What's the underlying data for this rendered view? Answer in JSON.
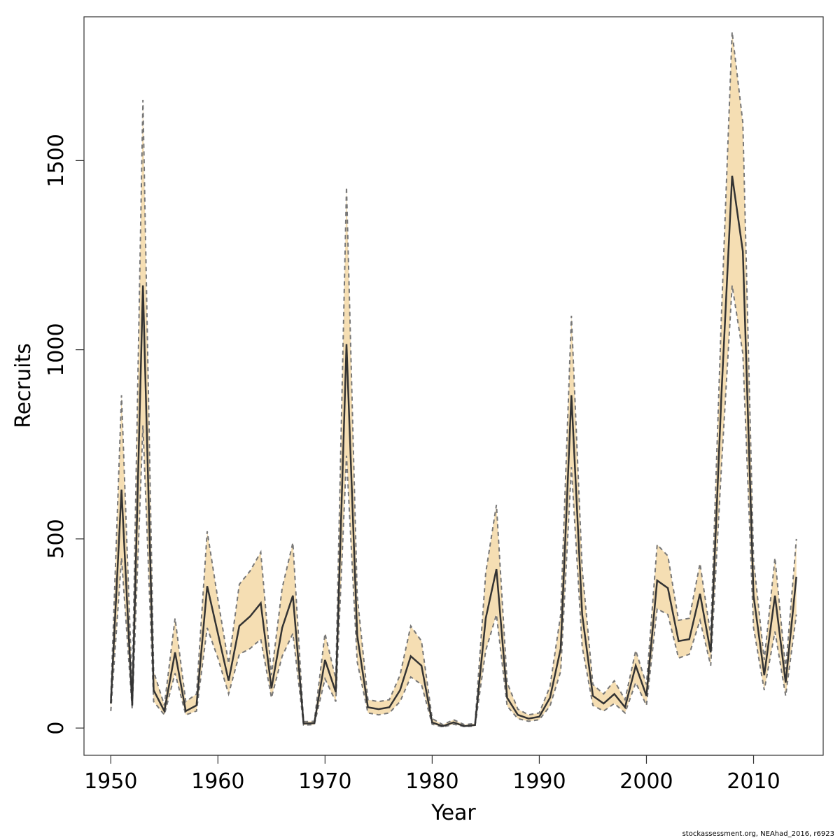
{
  "chart_data": {
    "type": "line",
    "xlabel": "Year",
    "ylabel": "Recruits",
    "xlim": [
      1947.5,
      2016.5
    ],
    "ylim": [
      -72,
      1880
    ],
    "x_ticks": [
      1950,
      1960,
      1970,
      1980,
      1990,
      2000,
      2010
    ],
    "y_ticks": [
      0,
      500,
      1000,
      1500
    ],
    "grid": false,
    "legend": "none",
    "colors": {
      "band": "#f5deb3",
      "line": "#333333",
      "bounds": "#777777",
      "frame": "#333333"
    },
    "x": [
      1950,
      1951,
      1952,
      1953,
      1954,
      1955,
      1956,
      1957,
      1958,
      1959,
      1960,
      1961,
      1962,
      1963,
      1964,
      1965,
      1966,
      1967,
      1968,
      1969,
      1970,
      1971,
      1972,
      1973,
      1974,
      1975,
      1976,
      1977,
      1978,
      1979,
      1980,
      1981,
      1982,
      1983,
      1984,
      1985,
      1986,
      1987,
      1988,
      1989,
      1990,
      1991,
      1992,
      1993,
      1994,
      1995,
      1996,
      1997,
      1998,
      1999,
      2000,
      2001,
      2002,
      2003,
      2004,
      2005,
      2006,
      2007,
      2008,
      2009,
      2010,
      2011,
      2012,
      2013,
      2014
    ],
    "series": [
      {
        "name": "",
        "role": "estimate",
        "values": [
          65,
          630,
          60,
          1170,
          100,
          45,
          200,
          45,
          60,
          375,
          250,
          125,
          270,
          295,
          330,
          105,
          265,
          350,
          12,
          13,
          180,
          95,
          1015,
          245,
          55,
          50,
          55,
          100,
          190,
          165,
          15,
          5,
          15,
          5,
          8,
          290,
          420,
          80,
          35,
          25,
          30,
          80,
          210,
          880,
          300,
          85,
          65,
          90,
          55,
          165,
          85,
          390,
          370,
          230,
          235,
          355,
          200,
          880,
          1460,
          1260,
          350,
          140,
          350,
          120,
          400
        ]
      },
      {
        "name": "",
        "role": "upper",
        "values": [
          80,
          880,
          100,
          1660,
          150,
          60,
          290,
          70,
          90,
          520,
          340,
          170,
          380,
          415,
          465,
          140,
          370,
          490,
          17,
          18,
          250,
          130,
          1430,
          350,
          75,
          70,
          75,
          140,
          270,
          230,
          25,
          9,
          22,
          9,
          12,
          410,
          590,
          120,
          50,
          35,
          40,
          110,
          300,
          1090,
          420,
          115,
          90,
          125,
          75,
          205,
          115,
          485,
          455,
          285,
          290,
          435,
          245,
          1090,
          1840,
          1600,
          445,
          180,
          450,
          155,
          500
        ]
      },
      {
        "name": "",
        "role": "lower",
        "values": [
          45,
          450,
          50,
          800,
          70,
          35,
          145,
          35,
          45,
          265,
          185,
          90,
          195,
          210,
          235,
          80,
          190,
          250,
          8,
          9,
          130,
          70,
          720,
          175,
          40,
          35,
          40,
          70,
          135,
          115,
          10,
          3,
          10,
          4,
          5,
          205,
          300,
          58,
          25,
          18,
          22,
          58,
          150,
          690,
          215,
          60,
          45,
          65,
          40,
          120,
          60,
          315,
          300,
          185,
          195,
          285,
          165,
          690,
          1170,
          990,
          265,
          100,
          255,
          85,
          300
        ]
      }
    ]
  },
  "footer": {
    "credit": "stockassessment.org, NEAhad_2016, r6923"
  }
}
